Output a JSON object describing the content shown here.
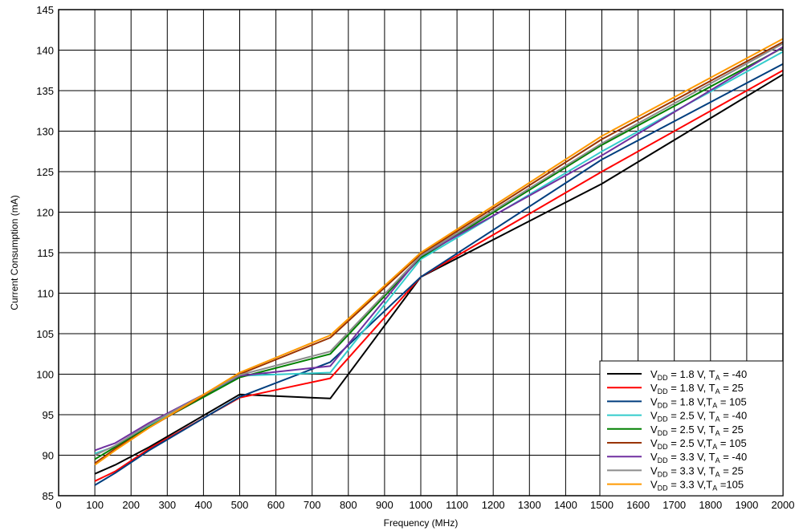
{
  "chart_data": {
    "type": "line",
    "title": "",
    "xlabel": "Frequency (MHz)",
    "ylabel": "Current Consumption (mA)",
    "xlim": [
      0,
      2000
    ],
    "ylim": [
      85,
      145
    ],
    "xticks": [
      0,
      100,
      200,
      300,
      400,
      500,
      600,
      700,
      800,
      900,
      1000,
      1100,
      1200,
      1300,
      1400,
      1500,
      1600,
      1700,
      1800,
      1900,
      2000
    ],
    "yticks": [
      85,
      90,
      95,
      100,
      105,
      110,
      115,
      120,
      125,
      130,
      135,
      140,
      145
    ],
    "grid": true,
    "legend_position": "bottom-right",
    "series": [
      {
        "label": "V_DD = 1.8 V, T_A = -40",
        "color": "#000000",
        "x": [
          100,
          156.25,
          250,
          500,
          750,
          1000,
          1500,
          2000
        ],
        "y": [
          87.7,
          88.8,
          91.0,
          97.5,
          97.0,
          112.0,
          123.5,
          137.0
        ]
      },
      {
        "label": "V_DD = 1.8 V, T_A = 25",
        "color": "#ff0000",
        "x": [
          100,
          156.25,
          250,
          500,
          750,
          1000,
          1500,
          2000
        ],
        "y": [
          86.8,
          88.0,
          90.8,
          97.1,
          99.5,
          112.0,
          125.0,
          137.5
        ]
      },
      {
        "label": "V_DD = 1.8 V,T_A = 105",
        "color": "#003e7e",
        "x": [
          100,
          156.25,
          250,
          500,
          750,
          1000,
          1500,
          2000
        ],
        "y": [
          86.3,
          87.8,
          90.6,
          97.2,
          101.5,
          112.0,
          126.5,
          138.3
        ]
      },
      {
        "label": "V_DD = 2.5 V, T_A = -40",
        "color": "#33cccc",
        "x": [
          100,
          156.25,
          250,
          500,
          750,
          1000,
          1500,
          2000
        ],
        "y": [
          90.2,
          91.1,
          93.6,
          99.8,
          100.2,
          114.2,
          127.5,
          139.8
        ]
      },
      {
        "label": "V_DD = 2.5 V, T_A = 25",
        "color": "#008000",
        "x": [
          100,
          156.25,
          250,
          500,
          750,
          1000,
          1500,
          2000
        ],
        "y": [
          89.5,
          91.0,
          93.5,
          99.6,
          102.5,
          114.4,
          128.3,
          140.3
        ]
      },
      {
        "label": "V_DD = 2.5 V,T_A = 105",
        "color": "#993300",
        "x": [
          100,
          156.25,
          250,
          500,
          750,
          1000,
          1500,
          2000
        ],
        "y": [
          89.0,
          90.8,
          93.4,
          100.0,
          104.5,
          114.8,
          129.0,
          141.0
        ]
      },
      {
        "label": "V_DD = 3.3 V, T_A = -40",
        "color": "#7030a0",
        "x": [
          100,
          156.25,
          250,
          500,
          750,
          1000,
          1500,
          2000
        ],
        "y": [
          90.6,
          91.5,
          94.0,
          99.8,
          101.0,
          114.6,
          127.0,
          140.4
        ]
      },
      {
        "label": "V_DD = 3.3 V, T_A = 25",
        "color": "#8c8c8c",
        "x": [
          100,
          156.25,
          250,
          500,
          750,
          1000,
          1500,
          2000
        ],
        "y": [
          90.0,
          91.2,
          93.8,
          99.9,
          102.8,
          114.6,
          128.5,
          140.8
        ]
      },
      {
        "label": "V_DD = 3.3 V,T_A =105",
        "color": "#ff9900",
        "x": [
          100,
          156.25,
          250,
          500,
          750,
          1000,
          1500,
          2000
        ],
        "y": [
          88.8,
          90.6,
          93.4,
          100.2,
          104.8,
          115.0,
          129.4,
          141.4
        ]
      }
    ],
    "legend": [
      {
        "pre": "V",
        "sub": "DD",
        "mid": " = 1.8 V, T",
        "sub2": "A",
        "post": " = -40"
      },
      {
        "pre": "V",
        "sub": "DD",
        "mid": " = 1.8 V, T",
        "sub2": "A",
        "post": " = 25"
      },
      {
        "pre": "V",
        "sub": "DD",
        "mid": " = 1.8 V,T",
        "sub2": "A",
        "post": " = 105"
      },
      {
        "pre": "V",
        "sub": "DD",
        "mid": " = 2.5 V, T",
        "sub2": "A",
        "post": " = -40"
      },
      {
        "pre": "V",
        "sub": "DD",
        "mid": " = 2.5 V, T",
        "sub2": "A",
        "post": " = 25"
      },
      {
        "pre": "V",
        "sub": "DD",
        "mid": " = 2.5 V,T",
        "sub2": "A",
        "post": " = 105"
      },
      {
        "pre": "V",
        "sub": "DD",
        "mid": " = 3.3 V, T",
        "sub2": "A",
        "post": " = -40"
      },
      {
        "pre": "V",
        "sub": "DD",
        "mid": " = 3.3 V, T",
        "sub2": "A",
        "post": " = 25"
      },
      {
        "pre": "V",
        "sub": "DD",
        "mid": " = 3.3 V,T",
        "sub2": "A",
        "post": " =105"
      }
    ]
  }
}
